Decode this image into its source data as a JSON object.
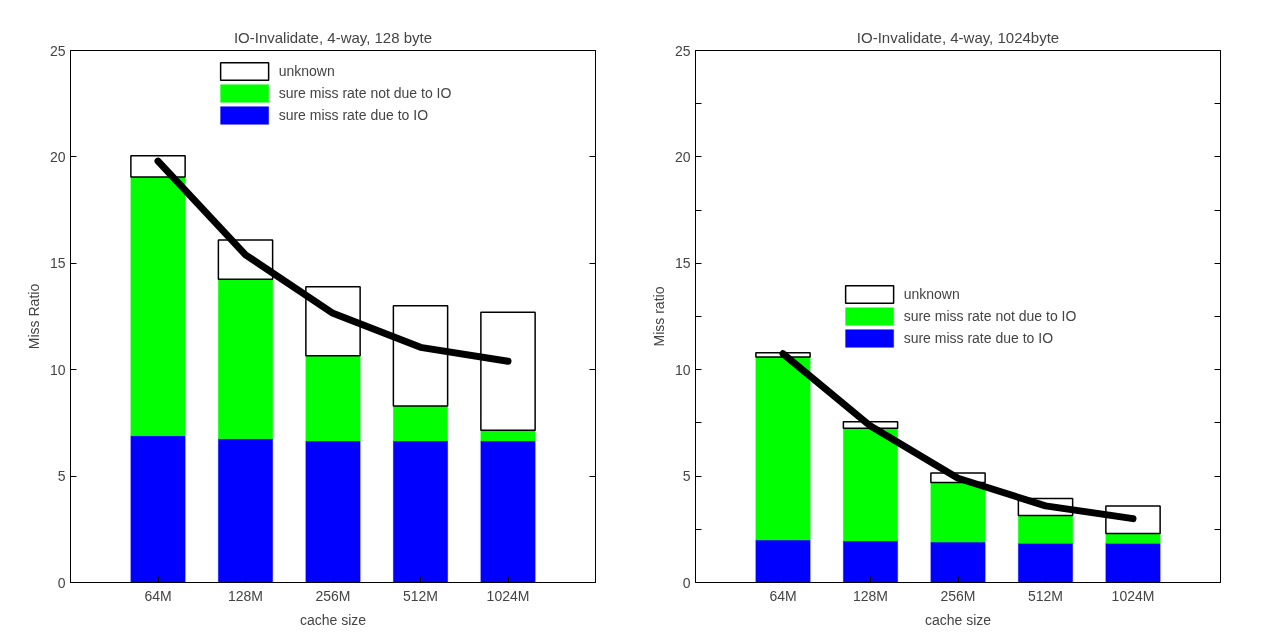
{
  "chart_data": [
    {
      "type": "bar",
      "stacked": true,
      "title": "IO-Invalidate, 4-way, 128 byte",
      "xlabel": "cache size",
      "ylabel": "Miss Ratio",
      "categories": [
        "64M",
        "128M",
        "256M",
        "512M",
        "1024M"
      ],
      "ylim": [
        0,
        25
      ],
      "yticks": [
        0,
        5,
        10,
        15,
        20,
        25
      ],
      "grid": false,
      "legend": "top",
      "series": [
        {
          "name": "sure miss rate due to IO",
          "color": "#0000ff",
          "values": [
            6.9,
            6.75,
            6.65,
            6.65,
            6.65
          ]
        },
        {
          "name": "sure miss rate not due to IO",
          "color": "#00ff00",
          "values": [
            12.15,
            7.5,
            4.0,
            1.65,
            0.5
          ]
        },
        {
          "name": "unknown",
          "color": "#ffffff",
          "values": [
            1.0,
            1.85,
            3.25,
            4.7,
            5.55
          ]
        },
        {
          "type": "line",
          "color": "#000000",
          "values": [
            19.8,
            15.4,
            12.65,
            11.05,
            10.4
          ]
        }
      ]
    },
    {
      "type": "bar",
      "stacked": true,
      "title": "IO-Invalidate, 4-way, 1024byte",
      "xlabel": "cache size",
      "ylabel": "Miss ratio",
      "categories": [
        "64M",
        "128M",
        "256M",
        "512M",
        "1024M"
      ],
      "ylim": [
        0,
        25
      ],
      "yticks": [
        0,
        {
          "value": 2.5,
          "label": null
        },
        5,
        {
          "value": 7.5,
          "label": null
        },
        10,
        {
          "value": 12.5,
          "label": null
        },
        15,
        {
          "value": 17.5,
          "label": null
        },
        20,
        {
          "value": 22.5,
          "label": null
        },
        25
      ],
      "grid": false,
      "legend": "center",
      "series": [
        {
          "name": "sure miss rate due to IO",
          "color": "#0000ff",
          "values": [
            2.0,
            1.95,
            1.9,
            1.85,
            1.85
          ]
        },
        {
          "name": "sure miss rate not due to IO",
          "color": "#00ff00",
          "values": [
            8.6,
            5.3,
            2.8,
            1.3,
            0.45
          ]
        },
        {
          "name": "unknown",
          "color": "#ffffff",
          "values": [
            0.2,
            0.3,
            0.45,
            0.8,
            1.3
          ]
        },
        {
          "type": "line",
          "color": "#000000",
          "values": [
            10.75,
            7.35,
            4.9,
            3.6,
            3.0
          ]
        }
      ]
    }
  ]
}
